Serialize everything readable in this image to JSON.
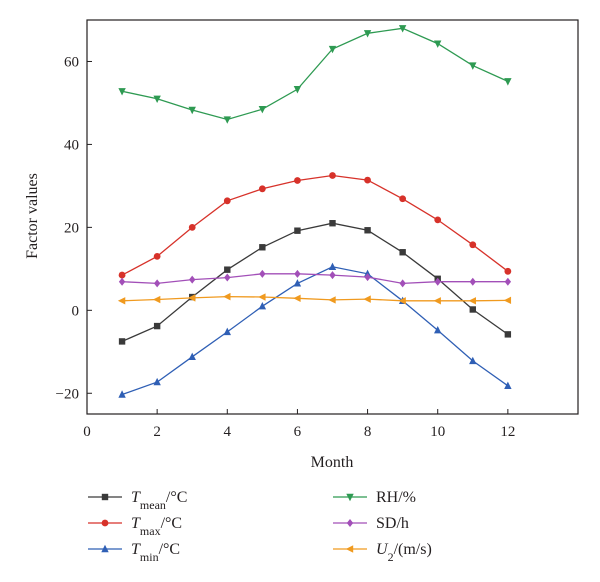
{
  "chart_data": {
    "type": "line",
    "xlabel": "Month",
    "ylabel": "Factor values",
    "xlim": [
      0,
      14
    ],
    "ylim": [
      -25,
      70
    ],
    "xticks": [
      0,
      2,
      4,
      6,
      8,
      10,
      12
    ],
    "yticks": [
      -20,
      0,
      20,
      40,
      60
    ],
    "x": [
      1,
      2,
      3,
      4,
      5,
      6,
      7,
      8,
      9,
      10,
      11,
      12
    ],
    "grid": false,
    "legend_position": "bottom",
    "series": [
      {
        "name": "T_mean/°C",
        "label_main": "T",
        "label_sub": "mean",
        "label_rest": "/°C",
        "color": "#3a3a3a",
        "marker": "square",
        "values": [
          -7.5,
          -3.8,
          3.2,
          9.8,
          15.2,
          19.2,
          21.0,
          19.3,
          14.0,
          7.6,
          0.2,
          -5.8
        ]
      },
      {
        "name": "T_max/°C",
        "label_main": "T",
        "label_sub": "max",
        "label_rest": "/°C",
        "color": "#d7322a",
        "marker": "circle",
        "values": [
          8.5,
          13.0,
          20.0,
          26.4,
          29.3,
          31.3,
          32.5,
          31.4,
          26.9,
          21.8,
          15.8,
          9.4
        ]
      },
      {
        "name": "T_min/°C",
        "label_main": "T",
        "label_sub": "min",
        "label_rest": "/°C",
        "color": "#2f5fb5",
        "marker": "triangle-up",
        "values": [
          -20.3,
          -17.3,
          -11.2,
          -5.2,
          1.0,
          6.5,
          10.5,
          8.8,
          2.3,
          -4.8,
          -12.2,
          -18.2
        ]
      },
      {
        "name": "RH/%",
        "label_main": "RH/%",
        "label_sub": "",
        "label_rest": "",
        "color": "#2e9a52",
        "marker": "triangle-down",
        "values": [
          52.8,
          51.0,
          48.3,
          46.0,
          48.5,
          53.3,
          63.0,
          66.8,
          68.0,
          64.3,
          59.0,
          55.2
        ]
      },
      {
        "name": "SD/h",
        "label_main": "SD/h",
        "label_sub": "",
        "label_rest": "",
        "color": "#a24fb8",
        "marker": "diamond",
        "values": [
          6.9,
          6.5,
          7.4,
          7.9,
          8.8,
          8.8,
          8.5,
          8.0,
          6.5,
          6.9,
          6.9,
          6.9
        ]
      },
      {
        "name": "U_2/(m/s)",
        "label_main": "U",
        "label_sub": "2",
        "label_rest": "/(m/s)",
        "color": "#f09a1f",
        "marker": "triangle-left",
        "values": [
          2.3,
          2.6,
          3.0,
          3.3,
          3.2,
          2.9,
          2.5,
          2.7,
          2.3,
          2.3,
          2.3,
          2.4
        ]
      }
    ]
  }
}
